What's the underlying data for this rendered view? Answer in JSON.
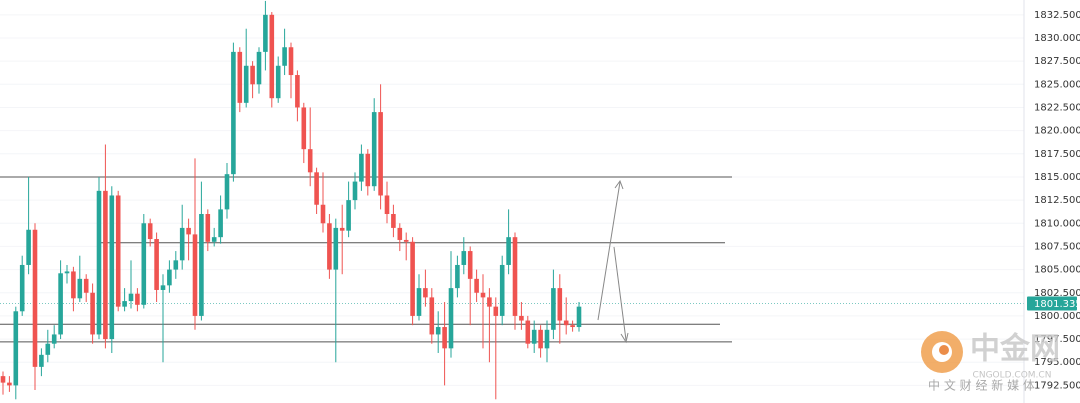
{
  "chart_data": {
    "type": "candlestick",
    "up_color": "#26a69a",
    "down_color": "#ef5350",
    "ylim": [
      1790.6,
      1834.1
    ],
    "yticks": [
      {
        "value": 1792.5,
        "label": "1792.500"
      },
      {
        "value": 1795,
        "label": "1795.000"
      },
      {
        "value": 1797.5,
        "label": "1797.500"
      },
      {
        "value": 1800,
        "label": "1800.000"
      },
      {
        "value": 1802.5,
        "label": "1802.500"
      },
      {
        "value": 1805,
        "label": "1805.000"
      },
      {
        "value": 1807.5,
        "label": "1807.500"
      },
      {
        "value": 1810,
        "label": "1810.000"
      },
      {
        "value": 1812.5,
        "label": "1812.500"
      },
      {
        "value": 1815,
        "label": "1815.000"
      },
      {
        "value": 1817.5,
        "label": "1817.500"
      },
      {
        "value": 1820,
        "label": "1820.000"
      },
      {
        "value": 1822.5,
        "label": "1822.500"
      },
      {
        "value": 1825,
        "label": "1825.000"
      },
      {
        "value": 1827.5,
        "label": "1827.500"
      },
      {
        "value": 1830,
        "label": "1830.000"
      },
      {
        "value": 1832.5,
        "label": "1832.500"
      }
    ],
    "grid": true,
    "last_price": 1801.335,
    "levels": [
      1815.0,
      1807.9,
      1799.1,
      1797.2
    ],
    "open": [
      1793.5,
      1792.8,
      1792.5,
      1800.5,
      1805.5,
      1809.3,
      1794.5,
      1795.8,
      1797.0,
      1798.0,
      1804.6,
      1804.8,
      1801.9,
      1804.0,
      1802.5,
      1798.0,
      1813.5,
      1797.5,
      1813.0,
      1801.0,
      1801.6,
      1802.4,
      1801.2,
      1810.0,
      1808.3,
      1802.8,
      1803.3,
      1805.0,
      1806.0,
      1809.5,
      1808.8,
      1800.0,
      1811.0,
      1808.0,
      1808.5,
      1811.5,
      1815.3,
      1828.5,
      1823.0,
      1827.0,
      1825.0,
      1828.5,
      1832.5,
      1823.5,
      1827.0,
      1829.0,
      1826.0,
      1822.5,
      1818.0,
      1815.5,
      1812.0,
      1810.0,
      1805.0,
      1809.5,
      1809.2,
      1812.5,
      1814.5,
      1817.5,
      1814.0,
      1822.0,
      1813.0,
      1811.0,
      1809.5,
      1808.2,
      1808.0,
      1800.0,
      1803.0,
      1802.0,
      1798.0,
      1798.8,
      1796.5,
      1803.0,
      1805.5,
      1807.0,
      1804.0,
      1802.5,
      1802.0,
      1801.0,
      1800.0,
      1805.5,
      1808.5,
      1800.0,
      1799.5,
      1797.0,
      1798.5,
      1796.5,
      1798.5,
      1803.0,
      1799.5,
      1799.0,
      1798.8
    ],
    "high": [
      1794.0,
      1793.5,
      1801.0,
      1806.5,
      1815.0,
      1810.0,
      1796.5,
      1798.5,
      1799.0,
      1806.0,
      1805.5,
      1805.3,
      1806.5,
      1804.5,
      1803.5,
      1815.0,
      1818.5,
      1814.0,
      1813.5,
      1803.0,
      1806.0,
      1803.0,
      1811.0,
      1810.5,
      1809.0,
      1804.5,
      1806.0,
      1807.0,
      1812.0,
      1810.5,
      1817.0,
      1814.5,
      1811.5,
      1809.5,
      1813.0,
      1816.5,
      1829.5,
      1829.0,
      1831.0,
      1827.5,
      1829.0,
      1834.0,
      1832.8,
      1828.0,
      1831.0,
      1829.5,
      1826.5,
      1823.0,
      1822.5,
      1816.0,
      1815.5,
      1811.0,
      1810.5,
      1812.0,
      1814.5,
      1815.5,
      1818.5,
      1818.0,
      1823.5,
      1825.0,
      1814.5,
      1812.0,
      1810.0,
      1809.0,
      1808.5,
      1804.5,
      1805.0,
      1803.0,
      1800.5,
      1801.5,
      1807.0,
      1806.5,
      1808.5,
      1807.5,
      1805.0,
      1804.5,
      1803.0,
      1802.0,
      1806.5,
      1811.5,
      1809.0,
      1801.5,
      1800.0,
      1799.5,
      1799.0,
      1799.5,
      1805.0,
      1804.5,
      1802.0,
      1799.5,
      1801.5
    ],
    "low": [
      1791.5,
      1791.8,
      1791.0,
      1800.0,
      1804.5,
      1792.0,
      1793.5,
      1795.0,
      1796.5,
      1797.5,
      1803.5,
      1800.5,
      1801.5,
      1801.5,
      1797.0,
      1797.5,
      1796.5,
      1796.0,
      1800.5,
      1800.5,
      1800.8,
      1800.5,
      1800.8,
      1807.5,
      1801.5,
      1795.0,
      1802.5,
      1804.0,
      1805.0,
      1806.0,
      1798.5,
      1799.5,
      1807.0,
      1807.5,
      1807.8,
      1810.5,
      1814.5,
      1822.0,
      1822.5,
      1823.5,
      1824.0,
      1826.5,
      1822.5,
      1823.0,
      1826.0,
      1823.5,
      1821.0,
      1816.5,
      1814.0,
      1811.0,
      1809.0,
      1804.0,
      1795.0,
      1804.5,
      1808.5,
      1811.5,
      1813.5,
      1813.0,
      1813.5,
      1811.5,
      1810.0,
      1808.5,
      1807.0,
      1806.0,
      1799.0,
      1799.5,
      1801.0,
      1797.0,
      1796.0,
      1792.5,
      1795.5,
      1802.0,
      1804.5,
      1799.0,
      1801.5,
      1796.5,
      1795.0,
      1791.0,
      1799.0,
      1804.5,
      1798.5,
      1798.5,
      1796.5,
      1796.0,
      1795.5,
      1795.0,
      1797.5,
      1797.0,
      1798.0,
      1798.3,
      1798.3
    ],
    "close": [
      1792.8,
      1792.5,
      1800.5,
      1805.5,
      1809.3,
      1794.5,
      1795.8,
      1797.0,
      1798.0,
      1804.6,
      1804.8,
      1801.9,
      1804.0,
      1802.5,
      1798.0,
      1813.5,
      1797.5,
      1813.0,
      1801.0,
      1801.6,
      1802.4,
      1801.2,
      1810.0,
      1808.3,
      1802.8,
      1803.3,
      1805.0,
      1806.0,
      1809.5,
      1808.8,
      1800.0,
      1811.0,
      1808.0,
      1808.5,
      1811.5,
      1815.3,
      1828.5,
      1823.0,
      1827.0,
      1825.0,
      1828.5,
      1832.5,
      1823.5,
      1827.0,
      1829.0,
      1826.0,
      1822.5,
      1818.0,
      1815.5,
      1812.0,
      1810.0,
      1805.0,
      1809.5,
      1809.2,
      1812.5,
      1814.5,
      1817.5,
      1814.0,
      1822.0,
      1813.0,
      1811.0,
      1809.5,
      1808.2,
      1808.0,
      1800.0,
      1803.0,
      1802.0,
      1798.0,
      1798.8,
      1796.5,
      1803.0,
      1805.5,
      1807.0,
      1804.0,
      1802.5,
      1802.0,
      1801.0,
      1800.0,
      1805.5,
      1808.5,
      1800.0,
      1799.5,
      1797.0,
      1798.5,
      1796.5,
      1798.5,
      1803.0,
      1799.5,
      1799.0,
      1798.8,
      1801.0
    ]
  },
  "watermark": {
    "name": "中金网",
    "domain": "CNGOLD.COM.CN",
    "tagline": "中 文 财 经 新 媒 体"
  }
}
